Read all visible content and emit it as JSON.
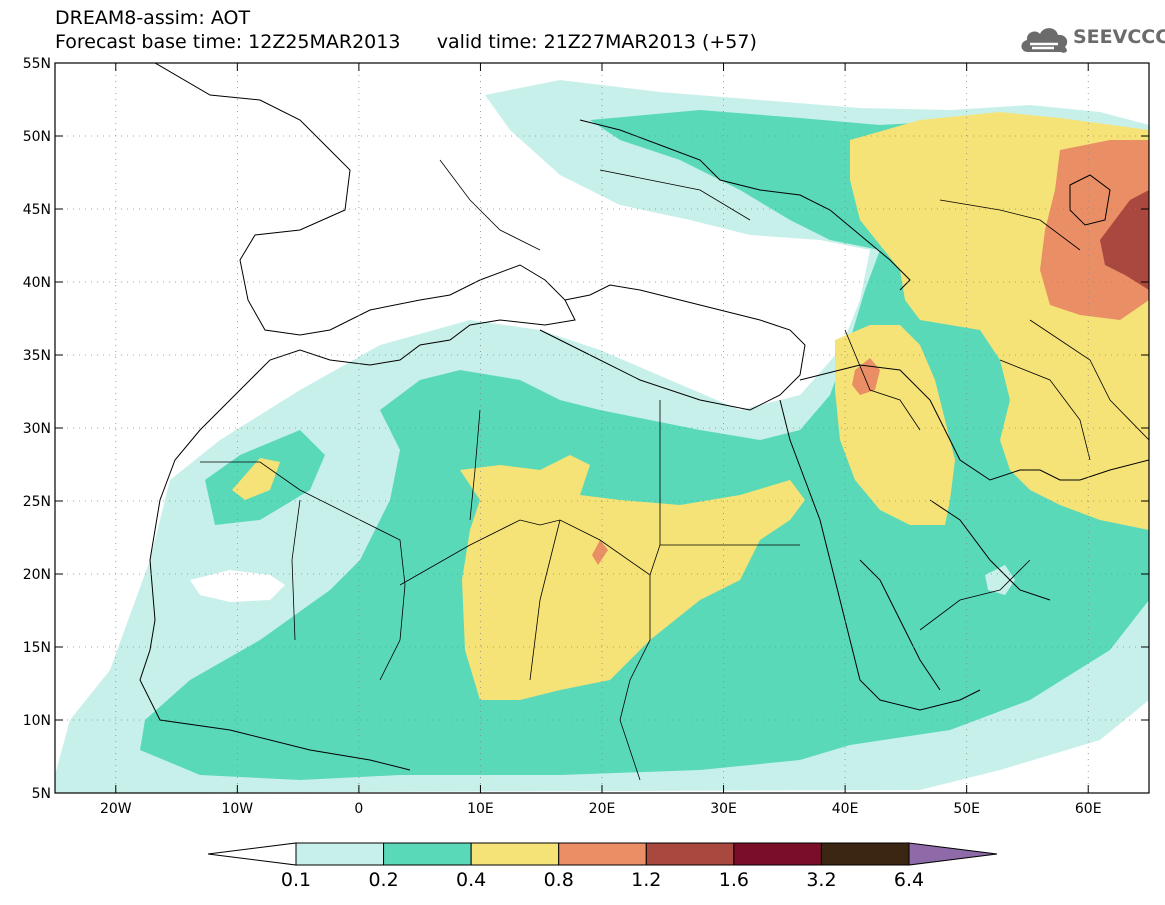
{
  "title": {
    "line1": "DREAM8-assim: AOT",
    "base_label": "Forecast base time: 12Z25MAR2013",
    "valid_label": "valid time: 21Z27MAR2013 (+57)"
  },
  "logo": {
    "text": "SEEVCCC",
    "icon": "cloud-icon"
  },
  "map": {
    "lon_range": [
      -25,
      65
    ],
    "lat_range": [
      5,
      55
    ],
    "lon_ticks": [
      "20W",
      "10W",
      "0",
      "10E",
      "20E",
      "30E",
      "40E",
      "50E",
      "60E"
    ],
    "lat_ticks": [
      "55N",
      "50N",
      "45N",
      "40N",
      "35N",
      "30N",
      "25N",
      "20N",
      "15N",
      "10N",
      "5N"
    ]
  },
  "colorbar": {
    "colors": [
      "#ffffff",
      "#c8f0ea",
      "#5ad9b9",
      "#f5e377",
      "#ea8e66",
      "#a8483e",
      "#7a0e28",
      "#3b2614",
      "#8e6aa8"
    ],
    "labels": [
      "0.1",
      "0.2",
      "0.4",
      "0.8",
      "1.2",
      "1.6",
      "3.2",
      "6.4"
    ]
  }
}
